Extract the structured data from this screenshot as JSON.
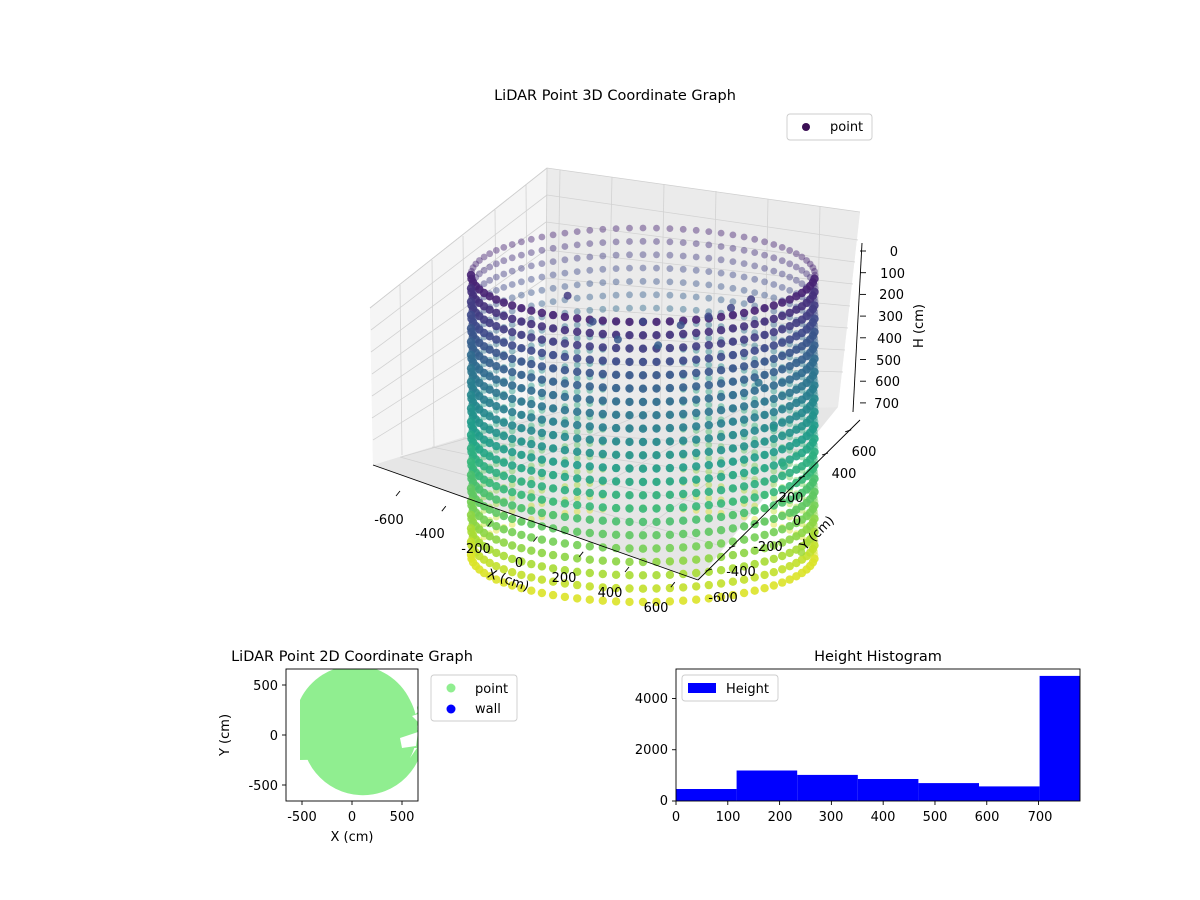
{
  "figure": {
    "background": "#ffffff"
  },
  "chart_data": [
    {
      "type": "scatter",
      "projection": "3d",
      "title": "LiDAR Point 3D Coordinate Graph",
      "xlabel": "X (cm)",
      "ylabel": "Y (cm)",
      "zlabel": "H (cm)",
      "xlim": [
        -650,
        650
      ],
      "ylim": [
        -650,
        650
      ],
      "zlim": [
        780,
        0
      ],
      "xticks": [
        "-600",
        "-400",
        "-200",
        "0",
        "200",
        "400",
        "600"
      ],
      "yticks": [
        "-600",
        "-400",
        "-200",
        "0",
        "200",
        "400",
        "600"
      ],
      "zticks": [
        "0",
        "100",
        "200",
        "300",
        "400",
        "500",
        "600",
        "700"
      ],
      "zaxis_inverted": true,
      "colormap": "viridis",
      "color_by": "H (cm)",
      "grid": true,
      "legend": {
        "entries": [
          {
            "label": "point",
            "color": "#3b0f54"
          }
        ],
        "position": "upper-right"
      },
      "cylinder": {
        "center_x": 0,
        "center_y": 0,
        "radius": 610,
        "h_min": 0,
        "h_max": 780
      },
      "series": [
        {
          "name": "point",
          "description_data": [
            {
              "x": -300,
              "y": 260,
              "h": 110
            },
            {
              "x": -200,
              "y": 200,
              "h": 170
            },
            {
              "x": -100,
              "y": 150,
              "h": 210
            },
            {
              "x": 0,
              "y": 150,
              "h": 160
            },
            {
              "x": 60,
              "y": 170,
              "h": 230
            },
            {
              "x": 150,
              "y": 200,
              "h": 180
            },
            {
              "x": 260,
              "y": 220,
              "h": 160
            },
            {
              "x": 350,
              "y": 240,
              "h": 140
            },
            {
              "x": 430,
              "y": 260,
              "h": 120
            },
            {
              "x": 460,
              "y": 0,
              "h": 300
            },
            {
              "x": 520,
              "y": -30,
              "h": 420
            },
            {
              "x": 560,
              "y": -60,
              "h": 520
            },
            {
              "x": 600,
              "y": -110,
              "h": 640
            },
            {
              "x": 630,
              "y": -160,
              "h": 740
            }
          ]
        }
      ]
    },
    {
      "type": "scatter",
      "title": "LiDAR Point 2D Coordinate Graph",
      "xlabel": "X (cm)",
      "ylabel": "Y (cm)",
      "xlim": [
        -660,
        660
      ],
      "ylim": [
        -660,
        660
      ],
      "xticks": [
        "-500",
        "0",
        "500"
      ],
      "yticks": [
        "500",
        "0",
        "-500"
      ],
      "legend": {
        "entries": [
          {
            "label": "point",
            "color": "#90ee90"
          },
          {
            "label": "wall",
            "color": "#0000ff"
          }
        ],
        "position": "outside-right"
      },
      "series": [
        {
          "name": "point",
          "color": "#90ee90",
          "shape": "disc",
          "center": [
            0,
            0
          ],
          "radius": 610
        },
        {
          "name": "wall",
          "color": "#0000ff",
          "points": []
        }
      ]
    },
    {
      "type": "bar",
      "title": "Height Histogram",
      "xlabel": "",
      "ylabel": "",
      "xlim": [
        0,
        780
      ],
      "ylim": [
        0,
        5150
      ],
      "xticks": [
        "0",
        "100",
        "200",
        "300",
        "400",
        "500",
        "600",
        "700"
      ],
      "yticks": [
        "0",
        "2000",
        "4000"
      ],
      "legend": {
        "entries": [
          {
            "label": "Height",
            "color": "#0000ff"
          }
        ],
        "position": "upper-left"
      },
      "series": [
        {
          "name": "Height",
          "color": "#0000ff",
          "bins": [
            0,
            117,
            234,
            351,
            468,
            585,
            702,
            780
          ],
          "values": [
            470,
            1190,
            1020,
            860,
            700,
            570,
            4880
          ]
        }
      ]
    }
  ]
}
